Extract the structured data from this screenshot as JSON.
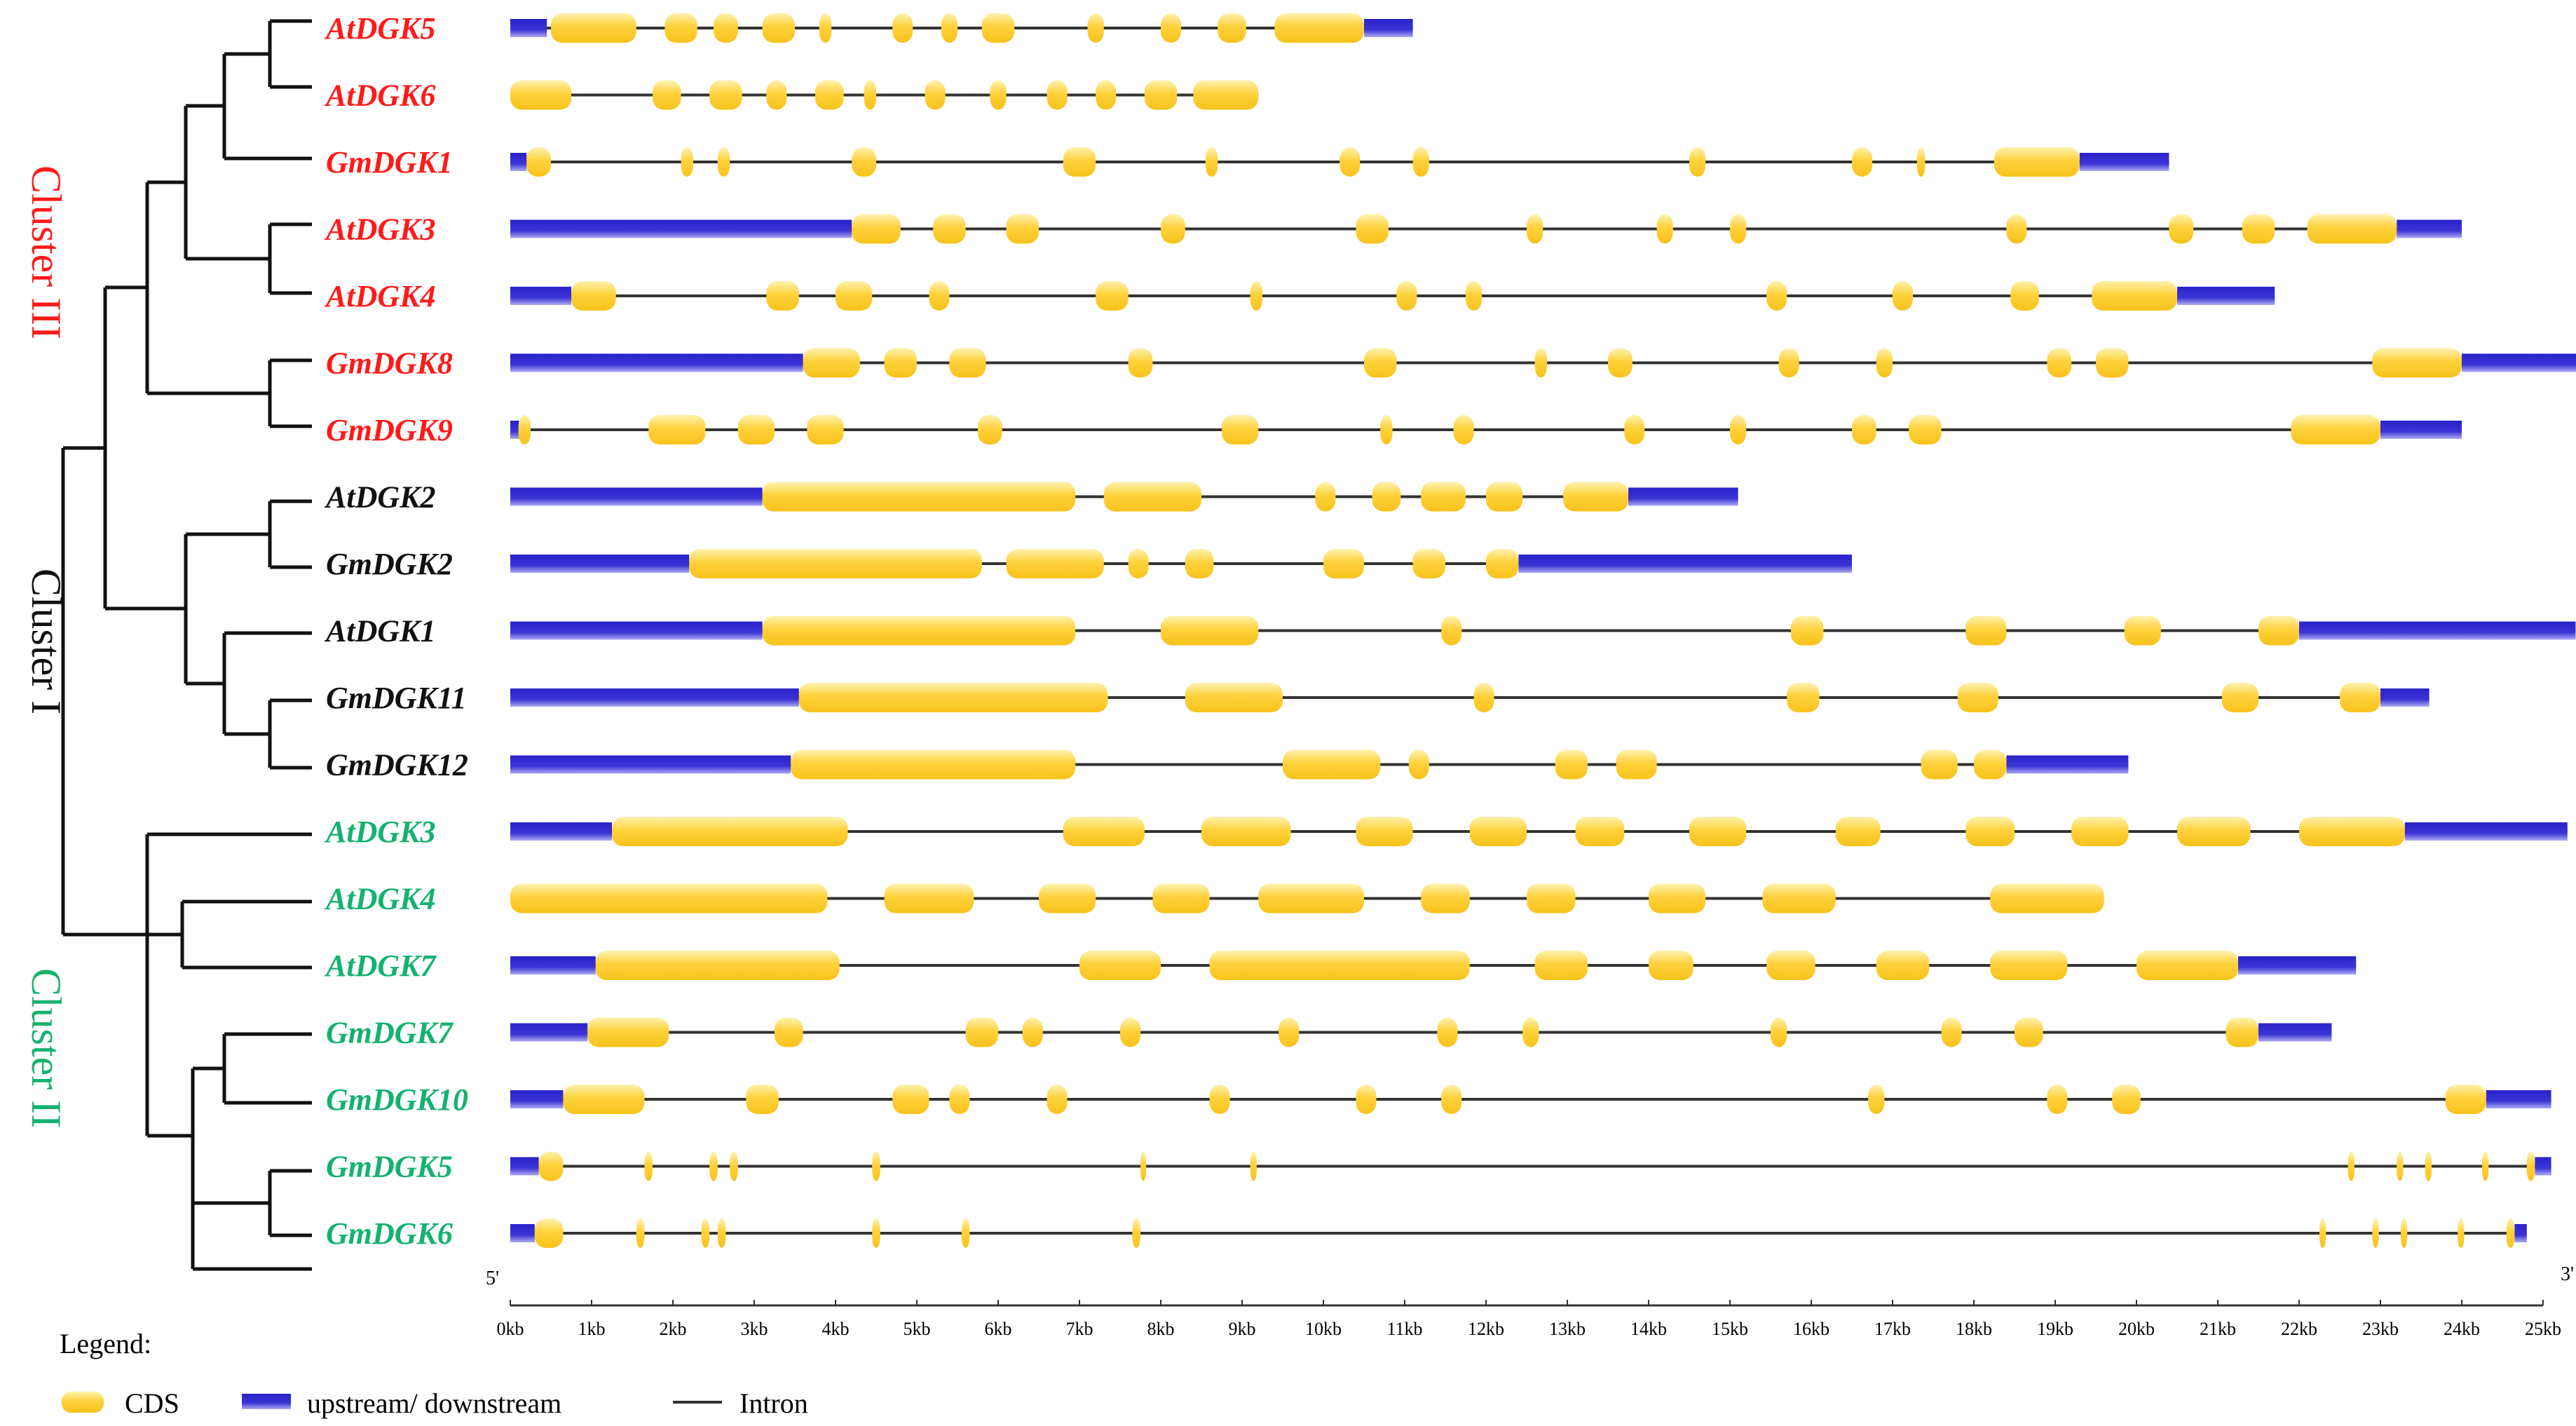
{
  "colors": {
    "red": "#ff1a1a",
    "black": "#111111",
    "green": "#14b26e",
    "cds": "#ffd23c",
    "cds_light": "#fff1a8",
    "utr": "#2a22c8",
    "utr_light": "#9a96f0",
    "line": "#333333"
  },
  "clusters": [
    {
      "label": "Cluster III",
      "color": "red"
    },
    {
      "label": "Cluster I",
      "color": "black"
    },
    {
      "label": "Cluster II",
      "color": "green"
    }
  ],
  "axis": {
    "ticks": [
      "0kb",
      "1kb",
      "2kb",
      "3kb",
      "4kb",
      "5kb",
      "6kb",
      "7kb",
      "8kb",
      "9kb",
      "10kb",
      "11kb",
      "12kb",
      "13kb",
      "14kb",
      "15kb",
      "16kb",
      "17kb",
      "18kb",
      "19kb",
      "20kb",
      "21kb",
      "22kb",
      "23kb",
      "24kb",
      "25kb"
    ],
    "start_label": "5'",
    "end_label": "3'",
    "max_kb": 25
  },
  "legend": {
    "title": "Legend:",
    "cds": "CDS",
    "utr": "upstream/ downstream",
    "intron": "Intron"
  },
  "genes": [
    {
      "name": "AtDGK5",
      "color": "red",
      "end": 11.1,
      "utr": [
        [
          0,
          0.45
        ],
        [
          10.5,
          11.1
        ]
      ],
      "cds": [
        [
          0.5,
          1.55
        ],
        [
          1.9,
          2.3
        ],
        [
          2.5,
          2.8
        ],
        [
          3.1,
          3.5
        ],
        [
          3.8,
          3.95
        ],
        [
          4.7,
          4.95
        ],
        [
          5.3,
          5.5
        ],
        [
          5.8,
          6.2
        ],
        [
          7.1,
          7.3
        ],
        [
          8.0,
          8.25
        ],
        [
          8.7,
          9.05
        ],
        [
          9.4,
          10.5
        ]
      ]
    },
    {
      "name": "AtDGK6",
      "color": "red",
      "end": 9.2,
      "utr": [],
      "cds": [
        [
          0,
          0.75
        ],
        [
          1.75,
          2.1
        ],
        [
          2.45,
          2.85
        ],
        [
          3.15,
          3.4
        ],
        [
          3.75,
          4.1
        ],
        [
          4.35,
          4.5
        ],
        [
          5.1,
          5.35
        ],
        [
          5.9,
          6.1
        ],
        [
          6.6,
          6.85
        ],
        [
          7.2,
          7.45
        ],
        [
          7.8,
          8.2
        ],
        [
          8.4,
          9.2
        ]
      ]
    },
    {
      "name": "GmDGK1",
      "color": "red",
      "end": 20.4,
      "utr": [
        [
          0,
          0.2
        ],
        [
          19.3,
          20.4
        ]
      ],
      "cds": [
        [
          0.2,
          0.5
        ],
        [
          2.1,
          2.25
        ],
        [
          2.55,
          2.7
        ],
        [
          4.2,
          4.5
        ],
        [
          6.8,
          7.2
        ],
        [
          8.55,
          8.7
        ],
        [
          10.2,
          10.45
        ],
        [
          11.1,
          11.3
        ],
        [
          14.5,
          14.7
        ],
        [
          16.5,
          16.75
        ],
        [
          17.3,
          17.4
        ],
        [
          18.25,
          19.3
        ]
      ]
    },
    {
      "name": "AtDGK3",
      "color": "red",
      "end": 24.0,
      "utr": [
        [
          0,
          4.2
        ],
        [
          23.2,
          24.0
        ]
      ],
      "cds": [
        [
          4.2,
          4.8
        ],
        [
          5.2,
          5.6
        ],
        [
          6.1,
          6.5
        ],
        [
          8.0,
          8.3
        ],
        [
          10.4,
          10.8
        ],
        [
          12.5,
          12.7
        ],
        [
          14.1,
          14.3
        ],
        [
          15.0,
          15.2
        ],
        [
          18.4,
          18.65
        ],
        [
          20.4,
          20.7
        ],
        [
          21.3,
          21.7
        ],
        [
          22.1,
          23.2
        ]
      ]
    },
    {
      "name": "AtDGK4",
      "color": "red",
      "end": 21.7,
      "utr": [
        [
          0,
          0.75
        ],
        [
          20.5,
          21.7
        ]
      ],
      "cds": [
        [
          0.75,
          1.3
        ],
        [
          3.15,
          3.55
        ],
        [
          4.0,
          4.45
        ],
        [
          5.15,
          5.4
        ],
        [
          7.2,
          7.6
        ],
        [
          9.1,
          9.25
        ],
        [
          10.9,
          11.15
        ],
        [
          11.75,
          11.95
        ],
        [
          15.45,
          15.7
        ],
        [
          17.0,
          17.25
        ],
        [
          18.45,
          18.8
        ],
        [
          19.45,
          20.5
        ]
      ]
    },
    {
      "name": "GmDGK8",
      "color": "red",
      "end": 25.5,
      "utr": [
        [
          0,
          3.6
        ],
        [
          24.0,
          25.5
        ]
      ],
      "cds": [
        [
          3.6,
          4.3
        ],
        [
          4.6,
          5.0
        ],
        [
          5.4,
          5.85
        ],
        [
          7.6,
          7.9
        ],
        [
          10.5,
          10.9
        ],
        [
          12.6,
          12.75
        ],
        [
          13.5,
          13.8
        ],
        [
          15.6,
          15.85
        ],
        [
          16.8,
          17.0
        ],
        [
          18.9,
          19.2
        ],
        [
          19.5,
          19.9
        ],
        [
          22.9,
          24.0
        ]
      ]
    },
    {
      "name": "GmDGK9",
      "color": "red",
      "end": 24.0,
      "utr": [
        [
          0,
          0.2
        ],
        [
          23.0,
          24.0
        ]
      ],
      "cds": [
        [
          0.1,
          0.25
        ],
        [
          1.7,
          2.4
        ],
        [
          2.8,
          3.25
        ],
        [
          3.65,
          4.1
        ],
        [
          5.75,
          6.05
        ],
        [
          8.75,
          9.2
        ],
        [
          10.7,
          10.85
        ],
        [
          11.6,
          11.85
        ],
        [
          13.7,
          13.95
        ],
        [
          15.0,
          15.2
        ],
        [
          16.5,
          16.8
        ],
        [
          17.2,
          17.6
        ],
        [
          21.9,
          23.0
        ]
      ]
    },
    {
      "name": "AtDGK2",
      "color": "black",
      "end": 15.1,
      "utr": [
        [
          0,
          3.1
        ],
        [
          13.75,
          15.1
        ]
      ],
      "cds": [
        [
          3.1,
          6.95
        ],
        [
          7.3,
          8.5
        ],
        [
          9.9,
          10.15
        ],
        [
          10.6,
          10.95
        ],
        [
          11.2,
          11.75
        ],
        [
          12.0,
          12.45
        ],
        [
          12.95,
          13.75
        ]
      ]
    },
    {
      "name": "GmDGK2",
      "color": "black",
      "end": 16.5,
      "utr": [
        [
          0,
          2.2
        ],
        [
          12.4,
          16.5
        ]
      ],
      "cds": [
        [
          2.2,
          5.8
        ],
        [
          6.1,
          7.3
        ],
        [
          7.6,
          7.85
        ],
        [
          8.3,
          8.65
        ],
        [
          10.0,
          10.5
        ],
        [
          11.1,
          11.5
        ],
        [
          12.0,
          12.4
        ]
      ]
    },
    {
      "name": "AtDGK1",
      "color": "black",
      "end": 25.4,
      "utr": [
        [
          0,
          3.1
        ],
        [
          22.0,
          25.4
        ]
      ],
      "cds": [
        [
          3.1,
          6.95
        ],
        [
          8.0,
          9.2
        ],
        [
          11.45,
          11.7
        ],
        [
          15.75,
          16.15
        ],
        [
          17.9,
          18.4
        ],
        [
          19.85,
          20.3
        ],
        [
          21.5,
          22.0
        ]
      ]
    },
    {
      "name": "GmDGK11",
      "color": "black",
      "end": 23.6,
      "utr": [
        [
          0,
          3.55
        ],
        [
          23.0,
          23.6
        ]
      ],
      "cds": [
        [
          3.55,
          7.35
        ],
        [
          8.3,
          9.5
        ],
        [
          11.85,
          12.1
        ],
        [
          15.7,
          16.1
        ],
        [
          17.8,
          18.3
        ],
        [
          21.05,
          21.5
        ],
        [
          22.5,
          23.0
        ]
      ]
    },
    {
      "name": "GmDGK12",
      "color": "black",
      "end": 19.9,
      "utr": [
        [
          0,
          3.45
        ],
        [
          18.4,
          19.9
        ]
      ],
      "cds": [
        [
          3.45,
          6.95
        ],
        [
          9.5,
          10.7
        ],
        [
          11.05,
          11.3
        ],
        [
          12.85,
          13.25
        ],
        [
          13.6,
          14.1
        ],
        [
          17.35,
          17.8
        ],
        [
          18.0,
          18.4
        ]
      ]
    },
    {
      "name": "AtDGK3",
      "color": "green",
      "end": 25.3,
      "utr": [
        [
          0,
          1.25
        ],
        [
          23.3,
          25.3
        ]
      ],
      "cds": [
        [
          1.25,
          4.15
        ],
        [
          6.8,
          7.8
        ],
        [
          8.5,
          9.6
        ],
        [
          10.4,
          11.1
        ],
        [
          11.8,
          12.5
        ],
        [
          13.1,
          13.7
        ],
        [
          14.5,
          15.2
        ],
        [
          16.3,
          16.85
        ],
        [
          17.9,
          18.5
        ],
        [
          19.2,
          19.9
        ],
        [
          20.5,
          21.4
        ],
        [
          22.0,
          23.3
        ]
      ]
    },
    {
      "name": "AtDGK4",
      "color": "green",
      "end": 19.6,
      "utr": [],
      "cds": [
        [
          0,
          3.9
        ],
        [
          4.6,
          5.7
        ],
        [
          6.5,
          7.2
        ],
        [
          7.9,
          8.6
        ],
        [
          9.2,
          10.5
        ],
        [
          11.2,
          11.8
        ],
        [
          12.5,
          13.1
        ],
        [
          14.0,
          14.7
        ],
        [
          15.4,
          16.3
        ],
        [
          18.2,
          19.6
        ]
      ]
    },
    {
      "name": "AtDGK7",
      "color": "green",
      "end": 22.7,
      "utr": [
        [
          0,
          1.05
        ],
        [
          21.25,
          22.7
        ]
      ],
      "cds": [
        [
          1.05,
          4.05
        ],
        [
          7.0,
          8.0
        ],
        [
          8.6,
          11.8
        ],
        [
          12.6,
          13.25
        ],
        [
          14.0,
          14.55
        ],
        [
          15.45,
          16.05
        ],
        [
          16.8,
          17.45
        ],
        [
          18.2,
          19.15
        ],
        [
          20.0,
          21.25
        ]
      ]
    },
    {
      "name": "GmDGK7",
      "color": "green",
      "end": 22.4,
      "utr": [
        [
          0,
          0.95
        ],
        [
          21.5,
          22.4
        ]
      ],
      "cds": [
        [
          0.95,
          1.95
        ],
        [
          3.25,
          3.6
        ],
        [
          5.6,
          6.0
        ],
        [
          6.3,
          6.55
        ],
        [
          7.5,
          7.75
        ],
        [
          9.45,
          9.7
        ],
        [
          11.4,
          11.65
        ],
        [
          12.45,
          12.65
        ],
        [
          15.5,
          15.7
        ],
        [
          17.6,
          17.85
        ],
        [
          18.5,
          18.85
        ],
        [
          21.1,
          21.5
        ]
      ]
    },
    {
      "name": "GmDGK10",
      "color": "green",
      "end": 25.1,
      "utr": [
        [
          0,
          0.65
        ],
        [
          24.3,
          25.1
        ]
      ],
      "cds": [
        [
          0.65,
          1.65
        ],
        [
          2.9,
          3.3
        ],
        [
          4.7,
          5.15
        ],
        [
          5.4,
          5.65
        ],
        [
          6.6,
          6.85
        ],
        [
          8.6,
          8.85
        ],
        [
          10.4,
          10.65
        ],
        [
          11.45,
          11.7
        ],
        [
          16.7,
          16.9
        ],
        [
          18.9,
          19.15
        ],
        [
          19.7,
          20.05
        ],
        [
          23.8,
          24.3
        ]
      ]
    },
    {
      "name": "GmDGK5",
      "color": "green",
      "end": 25.1,
      "utr": [
        [
          0,
          0.35
        ],
        [
          24.9,
          25.1
        ]
      ],
      "cds": [
        [
          0.35,
          0.65
        ],
        [
          1.65,
          1.75
        ],
        [
          2.45,
          2.55
        ],
        [
          2.7,
          2.8
        ],
        [
          4.45,
          4.55
        ],
        [
          7.75,
          7.82
        ],
        [
          9.1,
          9.18
        ],
        [
          22.6,
          22.68
        ],
        [
          23.2,
          23.28
        ],
        [
          23.55,
          23.63
        ],
        [
          24.25,
          24.33
        ],
        [
          24.8,
          24.9
        ]
      ]
    },
    {
      "name": "GmDGK6",
      "color": "green",
      "end": 24.8,
      "utr": [
        [
          0,
          0.3
        ],
        [
          24.65,
          24.8
        ]
      ],
      "cds": [
        [
          0.3,
          0.65
        ],
        [
          1.55,
          1.65
        ],
        [
          2.35,
          2.45
        ],
        [
          2.55,
          2.65
        ],
        [
          4.45,
          4.55
        ],
        [
          5.55,
          5.65
        ],
        [
          7.65,
          7.75
        ],
        [
          22.25,
          22.33
        ],
        [
          22.9,
          22.98
        ],
        [
          23.25,
          23.33
        ],
        [
          23.95,
          24.03
        ],
        [
          24.55,
          24.65
        ]
      ]
    }
  ]
}
